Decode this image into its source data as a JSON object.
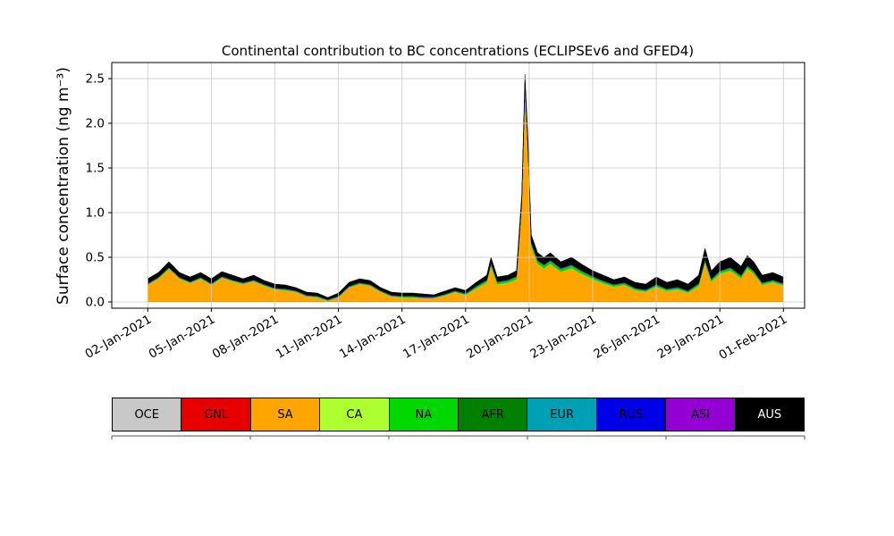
{
  "chart_data": {
    "type": "area",
    "stacked": true,
    "title": "Continental contribution to BC concentrations (ECLIPSEv6 and GFED4)",
    "ylabel": "Surface concentration (ng m⁻³)",
    "xlabel": "",
    "grid": true,
    "legend_position": "bottom",
    "ylim": [
      -0.07,
      2.68
    ],
    "yticks": [
      0,
      0.5,
      1,
      1.5,
      2,
      2.5
    ],
    "ytick_labels": [
      "0.0",
      "0.5",
      "1.0",
      "1.5",
      "2.0",
      "2.5"
    ],
    "x_unit": "days since 02-Jan-2021",
    "xlim": [
      -1.7,
      31
    ],
    "xticks": [
      0,
      3,
      6,
      9,
      12,
      15,
      18,
      21,
      24,
      27,
      30
    ],
    "xtick_labels": [
      "02-Jan-2021",
      "05-Jan-2021",
      "08-Jan-2021",
      "11-Jan-2021",
      "14-Jan-2021",
      "17-Jan-2021",
      "20-Jan-2021",
      "23-Jan-2021",
      "26-Jan-2021",
      "29-Jan-2021",
      "01-Feb-2021"
    ],
    "x": [
      0,
      0.5,
      1,
      1.5,
      2,
      2.5,
      3,
      3.5,
      4,
      4.5,
      5,
      5.5,
      6,
      6.5,
      7,
      7.5,
      8,
      8.5,
      9,
      9.5,
      10,
      10.5,
      11,
      11.5,
      12,
      12.5,
      13,
      13.5,
      14,
      14.5,
      15,
      15.5,
      16,
      16.2,
      16.5,
      17,
      17.4,
      17.65,
      17.8,
      17.95,
      18.1,
      18.4,
      18.7,
      19,
      19.5,
      20,
      20.5,
      21,
      21.5,
      22,
      22.5,
      23,
      23.5,
      24,
      24.5,
      25,
      25.5,
      26,
      26.3,
      26.6,
      27,
      27.5,
      28,
      28.3,
      28.6,
      29,
      29.5,
      30
    ],
    "series": [
      {
        "name": "OCE",
        "color": "#c8c8c8",
        "constant": 0.008
      },
      {
        "name": "GNL",
        "color": "#e60000",
        "constant": 0.002
      },
      {
        "name": "SA",
        "color": "#ffa500",
        "values": [
          0.182,
          0.252,
          0.362,
          0.252,
          0.202,
          0.252,
          0.182,
          0.262,
          0.222,
          0.192,
          0.222,
          0.172,
          0.132,
          0.122,
          0.102,
          0.052,
          0.042,
          0.003,
          0.042,
          0.152,
          0.192,
          0.172,
          0.102,
          0.052,
          0.042,
          0.042,
          0.032,
          0.032,
          0.062,
          0.1,
          0.068,
          0.141,
          0.206,
          0.396,
          0.186,
          0.206,
          0.241,
          1.056,
          2.376,
          1.641,
          0.611,
          0.416,
          0.366,
          0.416,
          0.328,
          0.368,
          0.301,
          0.246,
          0.198,
          0.161,
          0.181,
          0.123,
          0.104,
          0.161,
          0.113,
          0.131,
          0.094,
          0.168,
          0.431,
          0.216,
          0.304,
          0.341,
          0.256,
          0.364,
          0.306,
          0.181,
          0.211,
          0.173
        ]
      },
      {
        "name": "CA",
        "color": "#adff2f",
        "constant": 0.002
      },
      {
        "name": "NA",
        "color": "#00d800",
        "values": [
          0.004,
          0.004,
          0.004,
          0.004,
          0.004,
          0.004,
          0.004,
          0.004,
          0.004,
          0.004,
          0.004,
          0.004,
          0.004,
          0.004,
          0.004,
          0.004,
          0.004,
          0.003,
          0.004,
          0.004,
          0.004,
          0.004,
          0.004,
          0.004,
          0.004,
          0.004,
          0.004,
          0.004,
          0.004,
          0.006,
          0.008,
          0.015,
          0.02,
          0.02,
          0.02,
          0.02,
          0.025,
          0.04,
          0.05,
          0.045,
          0.035,
          0.03,
          0.03,
          0.03,
          0.028,
          0.028,
          0.025,
          0.02,
          0.018,
          0.015,
          0.015,
          0.013,
          0.012,
          0.015,
          0.013,
          0.015,
          0.012,
          0.018,
          0.025,
          0.02,
          0.022,
          0.025,
          0.02,
          0.022,
          0.02,
          0.015,
          0.015,
          0.013
        ]
      },
      {
        "name": "AFR",
        "color": "#008000",
        "constant": 0.004
      },
      {
        "name": "EUR",
        "color": "#00a0b4",
        "constant": 0.004
      },
      {
        "name": "RUS",
        "color": "#0000e6",
        "constant": 0.002
      },
      {
        "name": "ASI",
        "color": "#9400d3",
        "constant": 0.002
      },
      {
        "name": "AUS",
        "color": "#000000",
        "label_text_color": "#ffffff",
        "values": [
          0.05,
          0.05,
          0.06,
          0.05,
          0.05,
          0.05,
          0.05,
          0.05,
          0.05,
          0.04,
          0.05,
          0.04,
          0.04,
          0.04,
          0.03,
          0.03,
          0.03,
          0.02,
          0.03,
          0.04,
          0.04,
          0.04,
          0.03,
          0.03,
          0.03,
          0.03,
          0.03,
          0.02,
          0.03,
          0.03,
          0.03,
          0.04,
          0.05,
          0.06,
          0.05,
          0.05,
          0.06,
          0.08,
          0.1,
          0.09,
          0.08,
          0.08,
          0.08,
          0.08,
          0.07,
          0.08,
          0.07,
          0.06,
          0.06,
          0.05,
          0.06,
          0.06,
          0.06,
          0.08,
          0.07,
          0.08,
          0.07,
          0.09,
          0.12,
          0.09,
          0.1,
          0.11,
          0.1,
          0.11,
          0.1,
          0.08,
          0.08,
          0.07
        ]
      }
    ]
  }
}
